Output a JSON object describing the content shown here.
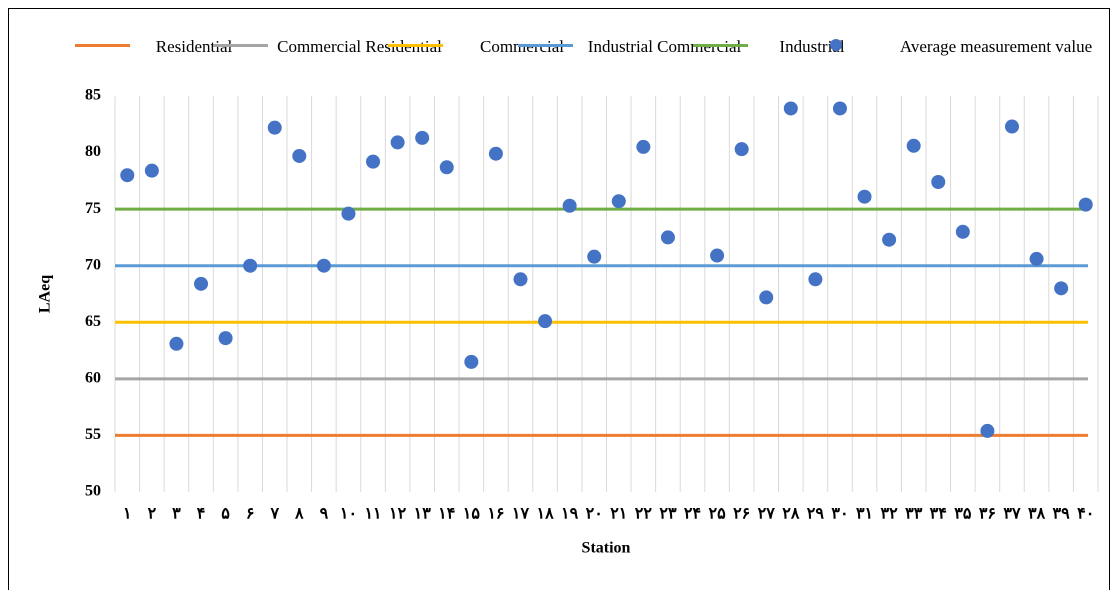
{
  "chart_data": {
    "type": "scatter",
    "x_label": "Station",
    "y_label": "LAeq",
    "categories": [
      "۱",
      "۲",
      "۳",
      "۴",
      "۵",
      "۶",
      "۷",
      "۸",
      "۹",
      "۱۰",
      "۱۱",
      "۱۲",
      "۱۳",
      "۱۴",
      "۱۵",
      "۱۶",
      "۱۷",
      "۱۸",
      "۱۹",
      "۲۰",
      "۲۱",
      "۲۲",
      "۲۳",
      "۲۴",
      "۲۵",
      "۲۶",
      "۲۷",
      "۲۸",
      "۲۹",
      "۳۰",
      "۳۱",
      "۳۲",
      "۳۳",
      "۳۴",
      "۳۵",
      "۳۶",
      "۳۷",
      "۳۸",
      "۳۹",
      "۴۰"
    ],
    "ylim": [
      50,
      85
    ],
    "yticks": [
      50,
      55,
      60,
      65,
      70,
      75,
      80,
      85
    ],
    "grid": true,
    "reference_lines": [
      {
        "name": "Residential",
        "color": "#ed7d31",
        "value": 55
      },
      {
        "name": "Commercial Residential",
        "color": "#a5a5a5",
        "value": 60
      },
      {
        "name": "Commercial",
        "color": "#ffc000",
        "value": 65
      },
      {
        "name": "Industrial Commercial",
        "color": "#5b9bd5",
        "value": 70
      },
      {
        "name": "Industrial",
        "color": "#70ad47",
        "value": 75
      }
    ],
    "series": [
      {
        "name": "Average measurement value",
        "color": "#4472c4",
        "values": [
          78.0,
          78.4,
          63.1,
          68.4,
          63.6,
          70.0,
          82.2,
          79.7,
          70.0,
          74.6,
          79.2,
          80.9,
          81.3,
          78.7,
          61.5,
          79.9,
          68.8,
          65.1,
          75.3,
          70.8,
          75.7,
          80.5,
          72.5,
          null,
          70.9,
          80.3,
          67.2,
          83.9,
          68.8,
          83.9,
          76.1,
          72.3,
          80.6,
          77.4,
          73.0,
          55.4,
          82.3,
          70.6,
          68.0,
          75.4
        ]
      }
    ]
  }
}
